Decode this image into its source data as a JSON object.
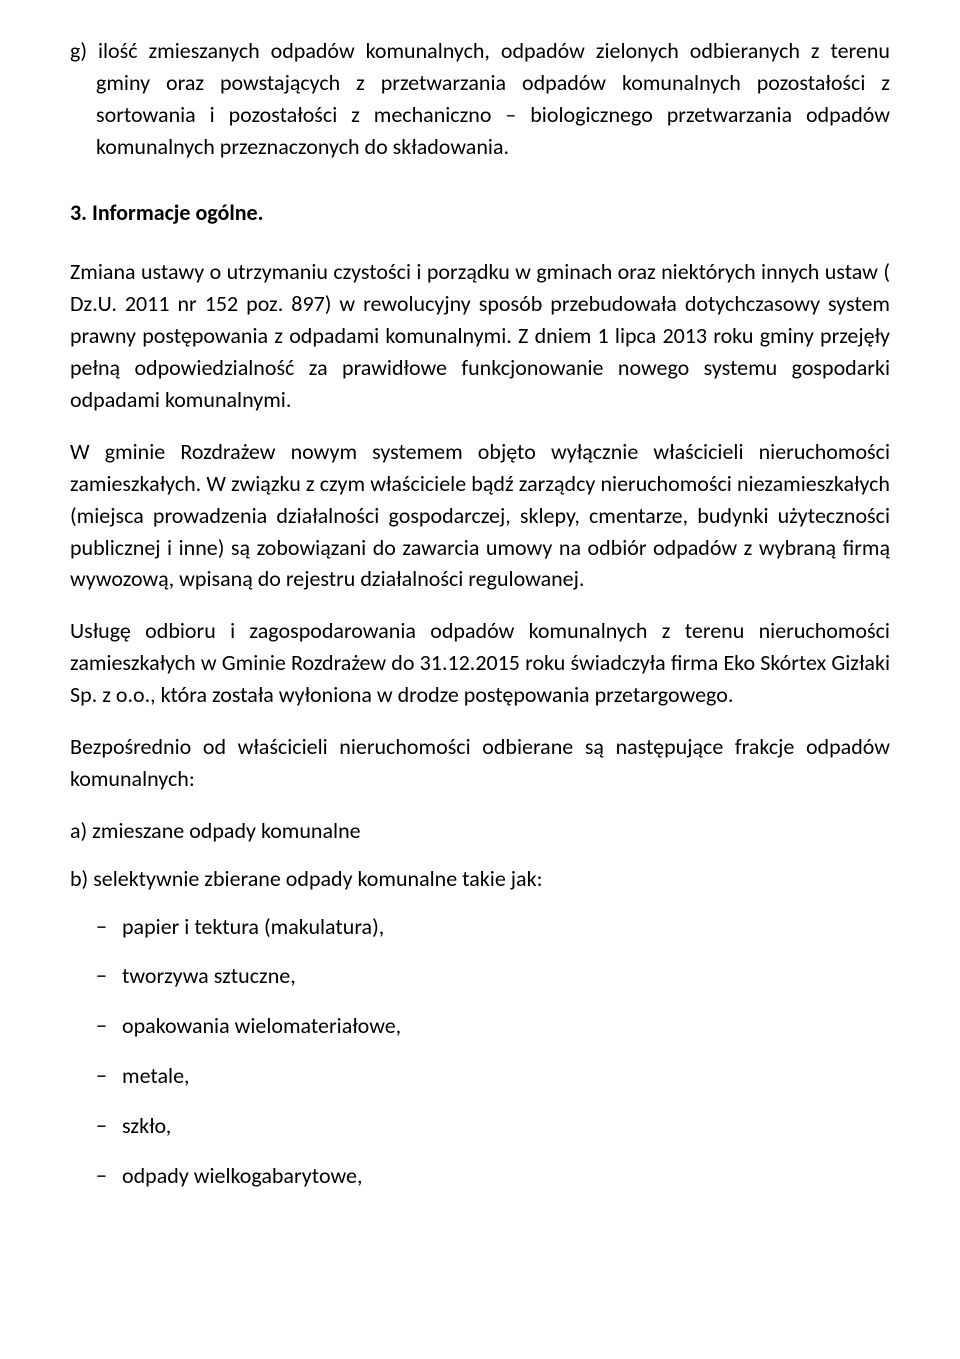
{
  "item_g": "g) ilość zmieszanych odpadów komunalnych, odpadów zielonych odbieranych z terenu gminy oraz powstających z przetwarzania odpadów komunalnych pozostałości z sortowania i pozostałości z mechaniczno – biologicznego przetwarzania odpadów komunalnych przeznaczonych do składowania.",
  "heading": "3. Informacje ogólne.",
  "para1": "Zmiana ustawy o utrzymaniu czystości i porządku w gminach oraz niektórych innych ustaw ( Dz.U. 2011 nr 152 poz. 897) w rewolucyjny sposób przebudowała dotychczasowy system prawny postępowania z odpadami komunalnymi. Z dniem 1 lipca 2013 roku gminy przejęły pełną odpowiedzialność za prawidłowe funkcjonowanie nowego systemu gospodarki odpadami komunalnymi.",
  "para2": "W gminie Rozdrażew nowym systemem objęto wyłącznie właścicieli nieruchomości zamieszkałych. W związku z czym właściciele bądź zarządcy nieruchomości niezamieszkałych (miejsca prowadzenia działalności gospodarczej, sklepy, cmentarze, budynki użyteczności publicznej i inne) są zobowiązani do zawarcia umowy na odbiór odpadów z wybraną firmą wywozową, wpisaną do rejestru działalności regulowanej.",
  "para3": "Usługę odbioru i zagospodarowania odpadów komunalnych z terenu nieruchomości zamieszkałych w Gminie Rozdrażew do 31.12.2015 roku świadczyła firma Eko Skórtex Gizłaki Sp. z o.o., która została wyłoniona w drodze postępowania przetargowego.",
  "para4": "Bezpośrednio od właścicieli nieruchomości odbierane są następujące frakcje odpadów komunalnych:",
  "item_a": "a)  zmieszane odpady komunalne",
  "item_b": "b)  selektywnie zbierane odpady komunalne takie jak:",
  "dash": {
    "d1": "papier i tektura (makulatura),",
    "d2": "tworzywa sztuczne,",
    "d3": "opakowania wielomateriałowe,",
    "d4": "metale,",
    "d5": "szkło,",
    "d6": "odpady wielkogabarytowe,"
  }
}
